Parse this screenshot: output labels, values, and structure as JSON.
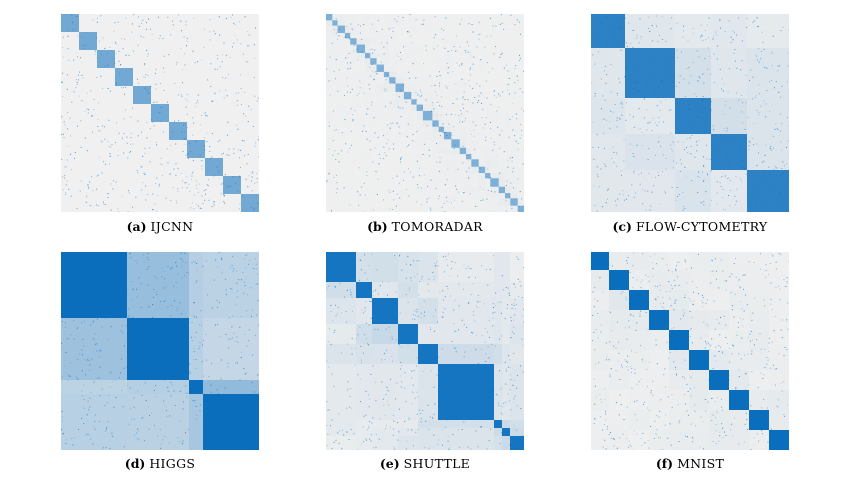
{
  "figure": {
    "panels": [
      {
        "id": "a",
        "label": "(a)",
        "name": "IJCNN",
        "blocks": [
          18,
          18,
          18,
          18,
          18,
          18,
          18,
          18,
          18,
          18,
          18
        ],
        "density": 0.0,
        "within": 0.55,
        "off": 0.0
      },
      {
        "id": "b",
        "label": "(b)",
        "name": "TOMORADAR",
        "blocks": [
          6,
          5,
          7,
          5,
          6,
          8,
          5,
          6,
          7,
          5,
          6,
          8,
          7,
          5,
          6,
          9,
          6,
          5,
          7,
          8,
          6,
          5,
          7,
          6,
          5,
          8,
          6,
          5,
          7,
          6
        ],
        "within": 0.5,
        "off": 0.03
      },
      {
        "id": "c",
        "label": "(c)",
        "name": "FLOW-CYTOMETRY",
        "blocks": [
          34,
          50,
          36,
          36,
          42
        ],
        "within": 0.85,
        "off": 0.12
      },
      {
        "id": "d",
        "label": "(d)",
        "name": "HIGGS",
        "blocks": [
          66,
          62,
          14,
          56
        ],
        "within": 1.0,
        "off": 0.35
      },
      {
        "id": "e",
        "label": "(e)",
        "name": "SHUTTLE",
        "blocks": [
          30,
          16,
          26,
          20,
          20,
          56,
          8,
          8,
          14
        ],
        "within": 0.95,
        "off": 0.15
      },
      {
        "id": "f",
        "label": "(f)",
        "name": "MNIST",
        "blocks": [
          18,
          20,
          20,
          20,
          20,
          20,
          20,
          20,
          20,
          20
        ],
        "within": 1.0,
        "off": 0.05
      }
    ],
    "colors": {
      "matrix_bg": "#f0f0f0",
      "fill": "#0a6ebd"
    }
  }
}
